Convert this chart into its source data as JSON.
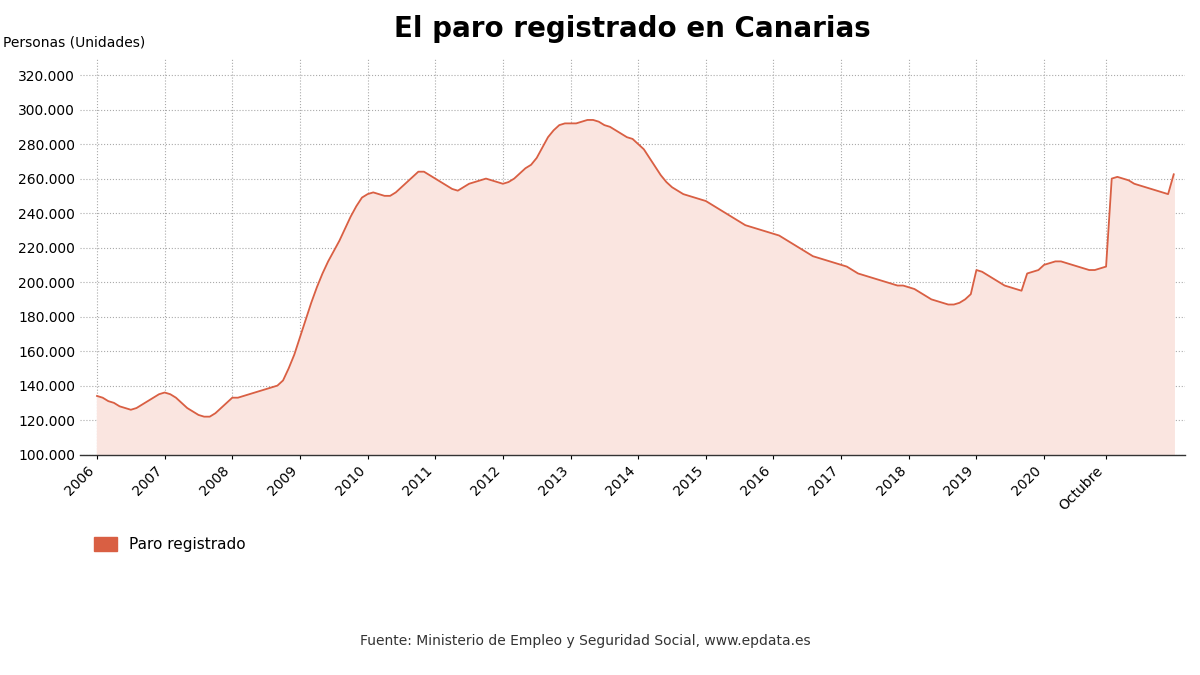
{
  "title": "El paro registrado en Canarias",
  "ylabel": "Personas (Unidades)",
  "line_color": "#D95F43",
  "fill_color": "#FAE5E0",
  "background_color": "#FFFFFF",
  "ylim": [
    100000,
    330000
  ],
  "yticks": [
    100000,
    120000,
    140000,
    160000,
    180000,
    200000,
    220000,
    240000,
    260000,
    280000,
    300000,
    320000
  ],
  "legend_label": "Paro registrado",
  "source_text": "Fuente: Ministerio de Empleo y Seguridad Social, www.epdata.es",
  "values": [
    134000,
    133000,
    131000,
    130000,
    128000,
    127000,
    126000,
    127000,
    129000,
    131000,
    133000,
    135000,
    136000,
    135000,
    133000,
    130000,
    127000,
    125000,
    123000,
    122000,
    122000,
    124000,
    127000,
    130000,
    133000,
    133000,
    134000,
    135000,
    136000,
    137000,
    138000,
    139000,
    140000,
    143000,
    150000,
    158000,
    168000,
    178000,
    188000,
    197000,
    205000,
    212000,
    218000,
    224000,
    231000,
    238000,
    244000,
    249000,
    251000,
    252000,
    251000,
    250000,
    250000,
    252000,
    255000,
    258000,
    261000,
    264000,
    264000,
    262000,
    260000,
    258000,
    256000,
    254000,
    253000,
    255000,
    257000,
    258000,
    259000,
    260000,
    259000,
    258000,
    257000,
    258000,
    260000,
    263000,
    266000,
    268000,
    272000,
    278000,
    284000,
    288000,
    291000,
    292000,
    292000,
    292000,
    293000,
    294000,
    294000,
    293000,
    291000,
    290000,
    288000,
    286000,
    284000,
    283000,
    280000,
    277000,
    272000,
    267000,
    262000,
    258000,
    255000,
    253000,
    251000,
    250000,
    249000,
    248000,
    247000,
    245000,
    243000,
    241000,
    239000,
    237000,
    235000,
    233000,
    232000,
    231000,
    230000,
    229000,
    228000,
    227000,
    225000,
    223000,
    221000,
    219000,
    217000,
    215000,
    214000,
    213000,
    212000,
    211000,
    210000,
    209000,
    207000,
    205000,
    204000,
    203000,
    202000,
    201000,
    200000,
    199000,
    198000,
    198000,
    197000,
    196000,
    194000,
    192000,
    190000,
    189000,
    188000,
    187000,
    187000,
    188000,
    190000,
    193000,
    207000,
    206000,
    204000,
    202000,
    200000,
    198000,
    197000,
    196000,
    195000,
    205000,
    206000,
    207000,
    210000,
    211000,
    212000,
    212000,
    211000,
    210000,
    209000,
    208000,
    207000,
    207000,
    208000,
    209000,
    260000,
    261000,
    260000,
    259000,
    257000,
    256000,
    255000,
    254000,
    253000,
    252000,
    251000,
    262487
  ],
  "xtick_positions": [
    0,
    12,
    24,
    36,
    48,
    60,
    72,
    84,
    96,
    108,
    120,
    132,
    144,
    156,
    168,
    179
  ],
  "xtick_labels": [
    "2006",
    "2007",
    "2008",
    "2009",
    "2010",
    "2011",
    "2012",
    "2013",
    "2014",
    "2015",
    "2016",
    "2017",
    "2018",
    "2019",
    "2020",
    "Octubre"
  ]
}
